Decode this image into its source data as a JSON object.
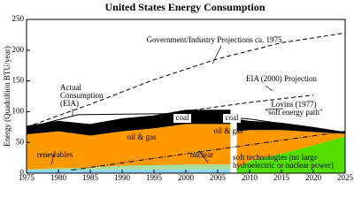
{
  "chart_data": {
    "type": "area",
    "title": "United States Energy Consumption",
    "y_label": "Energy (Quadrillion BTU/year)",
    "xlim": [
      1975,
      2025
    ],
    "xticks": [
      1975,
      1980,
      1985,
      1990,
      1995,
      2000,
      2005,
      2010,
      2015,
      2020,
      2025
    ],
    "ylim": [
      0,
      250
    ],
    "yticks": [
      0,
      50,
      100,
      150,
      200,
      250
    ],
    "series": [
      {
        "name": "renewables",
        "color": "#8fd3f5",
        "x": [
          1975,
          1980,
          1985,
          1990,
          1995,
          2000,
          2005,
          2007
        ],
        "values": [
          5,
          5,
          5,
          6,
          6,
          6,
          6,
          6
        ]
      },
      {
        "name": "nuclear",
        "color": "#a6e0a0",
        "x": [
          1975,
          1980,
          1985,
          1990,
          1995,
          2000,
          2005,
          2007
        ],
        "values": [
          1,
          3,
          4,
          6,
          7,
          8,
          8,
          8
        ]
      },
      {
        "name": "oil & gas",
        "color": "#ff9900",
        "x": [
          1975,
          1980,
          1985,
          1990,
          1995,
          2000,
          2005,
          2007
        ],
        "values": [
          57,
          60,
          52,
          56,
          60,
          66,
          66,
          66
        ]
      },
      {
        "name": "coal",
        "color": "#000000",
        "x": [
          1975,
          1980,
          1985,
          1990,
          1995,
          2000,
          2005,
          2007
        ],
        "values": [
          14,
          17,
          19,
          21,
          21,
          23,
          23,
          23
        ]
      },
      {
        "color": "#55dd00",
        "x": [
          2008,
          2010,
          2015,
          2020,
          2025
        ],
        "values": [
          8,
          20,
          32,
          45,
          60
        ]
      },
      {
        "name": "oil & gas",
        "color": "#ff9900",
        "x": [
          2008,
          2010,
          2015,
          2020,
          2025
        ],
        "values": [
          60,
          50,
          38,
          22,
          4
        ]
      },
      {
        "name": "coal",
        "color": "#000000",
        "x": [
          2008,
          2010,
          2015,
          2020,
          2025
        ],
        "values": [
          20,
          15,
          12,
          8,
          3
        ]
      },
      {
        "type": "line",
        "style": "dashed",
        "color": "#000000",
        "x": [
          1975,
          1985,
          1995,
          2005,
          2015,
          2025
        ],
        "values": [
          75,
          112,
          152,
          186,
          212,
          228
        ]
      },
      {
        "type": "line",
        "style": "dashed",
        "color": "#000000",
        "x": [
          2000,
          2010,
          2020
        ],
        "values": [
          101,
          115,
          127
        ]
      },
      {
        "type": "line",
        "style": "solid",
        "color": "#000000",
        "x": [
          1976,
          1983,
          2000,
          2010,
          2025
        ],
        "values": [
          76,
          95,
          97,
          88,
          66
        ]
      },
      {
        "type": "line",
        "style": "dashdot",
        "color": "#000000",
        "x": [
          1982,
          2025
        ],
        "values": [
          5,
          68
        ]
      }
    ],
    "annotations": [
      "Government/Industry Projections ca. 1975",
      "EIA (2000) Projection",
      "Lovins (1977)",
      "\"soft energy path\"",
      "Actual",
      "Consumption",
      "(EIA)",
      "soft technologies (no large",
      "hydroelectric or nuclear power)"
    ]
  }
}
